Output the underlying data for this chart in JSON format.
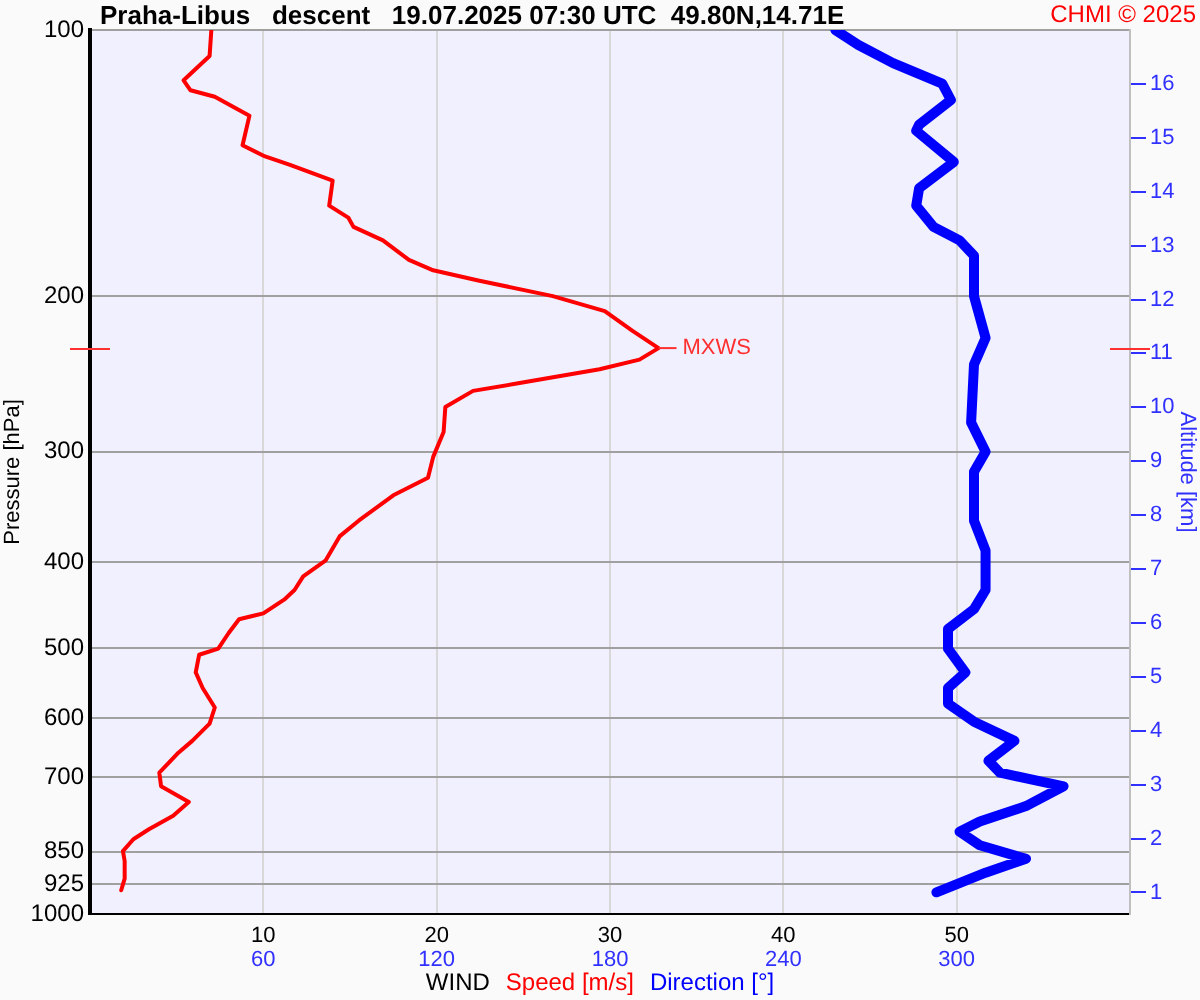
{
  "chart_data": {
    "type": "line",
    "title": "Praha-Libus   descent   19.07.2025 07:30 UTC  49.80N,14.71E",
    "ylabel": "Pressure [hPa]",
    "y2label": "Altitude [km]",
    "legend_title": "WIND",
    "legend": "bottom",
    "grid": true,
    "marker": "none",
    "line_style": "solid",
    "log": "y",
    "annotations": [
      "CHMI © 2025",
      {
        "text": "MXWS",
        "x": 32.8,
        "y": 229
      }
    ],
    "xlim": [
      0,
      60
    ],
    "xticks": [
      10,
      20,
      30,
      40,
      50
    ],
    "x2lim": [
      0,
      360
    ],
    "x2ticks": [
      60,
      120,
      180,
      240,
      300
    ],
    "ylim": [
      1000,
      100
    ],
    "yticks": [
      100,
      200,
      300,
      400,
      500,
      600,
      700,
      850,
      925,
      1000
    ],
    "y2lim": [
      0.6,
      17
    ],
    "y2ticks": [
      1,
      2,
      3,
      4,
      5,
      6,
      7,
      8,
      9,
      10,
      11,
      12,
      13,
      14,
      15,
      16
    ],
    "series": [
      {
        "name": "Speed [m/s]",
        "color": "#ff0000",
        "x": [
          7.0,
          6.9,
          5.4,
          5.8,
          7.2,
          9.2,
          8.8,
          10.1,
          11.5,
          14.0,
          13.8,
          14.9,
          15.2,
          16.9,
          18.4,
          19.8,
          22.4,
          26.7,
          29.7,
          31.3,
          32.8,
          31.7,
          29.4,
          24.7,
          22.1,
          20.5,
          20.4,
          19.8,
          19.5,
          17.5,
          15.5,
          14.4,
          13.6,
          12.3,
          11.8,
          11.2,
          10.0,
          8.6,
          8.0,
          7.4,
          6.3,
          6.1,
          6.5,
          7.2,
          6.9,
          5.9,
          5.1,
          4.0,
          4.1,
          5.7,
          4.8,
          3.4,
          2.5,
          1.9,
          2.0,
          2.0,
          1.8
        ],
        "values": [
          100,
          107,
          114,
          117,
          119,
          125,
          135,
          139,
          142,
          148,
          158,
          163,
          167,
          173,
          182,
          187,
          192,
          200,
          208,
          219,
          229,
          236,
          242,
          251,
          256,
          267,
          285,
          304,
          321,
          336,
          359,
          374,
          398,
          415,
          430,
          441,
          457,
          464,
          481,
          501,
          509,
          533,
          555,
          584,
          609,
          637,
          657,
          692,
          717,
          747,
          774,
          802,
          823,
          849,
          871,
          912,
          940
        ]
      },
      {
        "name": "Direction [°]",
        "color": "#0000ff",
        "axis": "x2",
        "x": [
          258,
          266,
          278,
          295,
          298,
          287,
          286,
          299,
          287,
          286,
          292,
          301,
          306,
          306,
          310,
          306,
          305,
          310,
          306,
          306,
          310,
          310,
          306,
          297,
          297,
          303,
          297,
          297,
          306,
          320,
          311,
          315,
          337,
          324,
          308,
          301,
          308,
          324,
          310,
          293
        ],
        "values": [
          100,
          104,
          109,
          115,
          120,
          128,
          130,
          141,
          151,
          158,
          167,
          173,
          180,
          200,
          223,
          239,
          278,
          300,
          316,
          359,
          388,
          430,
          452,
          476,
          501,
          533,
          555,
          578,
          606,
          637,
          671,
          692,
          717,
          755,
          786,
          807,
          836,
          866,
          898,
          945
        ]
      }
    ]
  }
}
